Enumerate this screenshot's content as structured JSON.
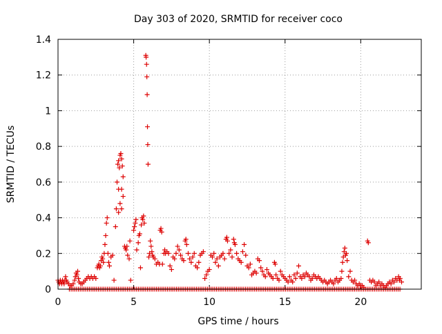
{
  "chart_data": {
    "type": "scatter",
    "title": "Day 303 of 2020, SRMTID for receiver coco",
    "xlabel": "GPS time / hours",
    "ylabel": "SRMTID / TECUs",
    "xlim": [
      0,
      24
    ],
    "ylim": [
      0,
      1.4
    ],
    "xticks": [
      0,
      5,
      10,
      15,
      20
    ],
    "xtick_labels": [
      "0",
      "5",
      "10",
      "15",
      "20"
    ],
    "yticks": [
      0,
      0.2,
      0.4,
      0.6,
      0.8,
      1,
      1.2,
      1.4
    ],
    "ytick_labels": [
      "0",
      "0.2",
      "0.4",
      "0.6",
      "0.8",
      "1",
      "1.2",
      "1.4"
    ],
    "grid": true,
    "marker": "plus",
    "color": "#dd0000",
    "series": [
      {
        "name": "SRMTID",
        "points": [
          [
            0.0,
            0.05
          ],
          [
            0.05,
            0.04
          ],
          [
            0.1,
            0.03
          ],
          [
            0.15,
            0.05
          ],
          [
            0.2,
            0.04
          ],
          [
            0.25,
            0.03
          ],
          [
            0.3,
            0.05
          ],
          [
            0.35,
            0.04
          ],
          [
            0.4,
            0.03
          ],
          [
            0.45,
            0.05
          ],
          [
            0.5,
            0.07
          ],
          [
            0.55,
            0.05
          ],
          [
            0.6,
            0.04
          ],
          [
            0.7,
            0.03
          ],
          [
            0.8,
            0.02
          ],
          [
            0.9,
            0.02
          ],
          [
            1.0,
            0.03
          ],
          [
            1.1,
            0.05
          ],
          [
            1.15,
            0.07
          ],
          [
            1.2,
            0.09
          ],
          [
            1.25,
            0.08
          ],
          [
            1.3,
            0.1
          ],
          [
            1.35,
            0.06
          ],
          [
            1.4,
            0.04
          ],
          [
            1.5,
            0.03
          ],
          [
            1.6,
            0.03
          ],
          [
            1.7,
            0.04
          ],
          [
            1.8,
            0.05
          ],
          [
            1.9,
            0.06
          ],
          [
            2.0,
            0.07
          ],
          [
            2.1,
            0.06
          ],
          [
            2.2,
            0.07
          ],
          [
            2.3,
            0.06
          ],
          [
            2.4,
            0.07
          ],
          [
            2.5,
            0.06
          ],
          [
            2.6,
            0.12
          ],
          [
            2.65,
            0.13
          ],
          [
            2.7,
            0.14
          ],
          [
            2.75,
            0.12
          ],
          [
            2.8,
            0.13
          ],
          [
            2.85,
            0.16
          ],
          [
            2.9,
            0.18
          ],
          [
            2.95,
            0.17
          ],
          [
            3.0,
            0.15
          ],
          [
            3.05,
            0.2
          ],
          [
            3.1,
            0.25
          ],
          [
            3.15,
            0.3
          ],
          [
            3.2,
            0.37
          ],
          [
            3.25,
            0.4
          ],
          [
            3.3,
            0.2
          ],
          [
            3.35,
            0.15
          ],
          [
            3.4,
            0.13
          ],
          [
            3.5,
            0.18
          ],
          [
            3.6,
            0.19
          ],
          [
            3.7,
            0.05
          ],
          [
            3.8,
            0.35
          ],
          [
            3.85,
            0.45
          ],
          [
            3.9,
            0.6
          ],
          [
            3.95,
            0.7
          ],
          [
            4.0,
            0.72
          ],
          [
            4.05,
            0.68
          ],
          [
            4.1,
            0.75
          ],
          [
            4.15,
            0.76
          ],
          [
            4.2,
            0.73
          ],
          [
            4.25,
            0.69
          ],
          [
            4.3,
            0.63
          ],
          [
            4.0,
            0.56
          ],
          [
            4.2,
            0.56
          ],
          [
            4.1,
            0.48
          ],
          [
            4.2,
            0.45
          ],
          [
            4.3,
            0.52
          ],
          [
            4.0,
            0.43
          ],
          [
            4.4,
            0.24
          ],
          [
            4.45,
            0.23
          ],
          [
            4.5,
            0.22
          ],
          [
            4.55,
            0.24
          ],
          [
            4.6,
            0.19
          ],
          [
            4.7,
            0.17
          ],
          [
            4.75,
            0.27
          ],
          [
            4.8,
            0.05
          ],
          [
            5.0,
            0.33
          ],
          [
            5.05,
            0.35
          ],
          [
            5.1,
            0.37
          ],
          [
            5.15,
            0.39
          ],
          [
            5.2,
            0.22
          ],
          [
            5.3,
            0.26
          ],
          [
            5.35,
            0.3
          ],
          [
            5.4,
            0.31
          ],
          [
            5.45,
            0.12
          ],
          [
            5.5,
            0.36
          ],
          [
            5.55,
            0.4
          ],
          [
            5.6,
            0.39
          ],
          [
            5.65,
            0.41
          ],
          [
            5.7,
            0.37
          ],
          [
            5.8,
            1.31
          ],
          [
            5.82,
            1.3
          ],
          [
            5.85,
            1.26
          ],
          [
            5.87,
            1.19
          ],
          [
            5.89,
            1.09
          ],
          [
            5.91,
            0.91
          ],
          [
            5.93,
            0.81
          ],
          [
            5.95,
            0.7
          ],
          [
            6.0,
            0.18
          ],
          [
            6.05,
            0.2
          ],
          [
            6.1,
            0.27
          ],
          [
            6.15,
            0.24
          ],
          [
            6.2,
            0.21
          ],
          [
            6.25,
            0.19
          ],
          [
            6.3,
            0.18
          ],
          [
            6.4,
            0.17
          ],
          [
            6.5,
            0.14
          ],
          [
            6.6,
            0.15
          ],
          [
            6.7,
            0.14
          ],
          [
            6.75,
            0.33
          ],
          [
            6.8,
            0.34
          ],
          [
            6.85,
            0.32
          ],
          [
            6.9,
            0.14
          ],
          [
            7.0,
            0.2
          ],
          [
            7.05,
            0.22
          ],
          [
            7.1,
            0.2
          ],
          [
            7.2,
            0.21
          ],
          [
            7.3,
            0.2
          ],
          [
            7.4,
            0.13
          ],
          [
            7.5,
            0.11
          ],
          [
            7.6,
            0.18
          ],
          [
            7.7,
            0.17
          ],
          [
            7.8,
            0.2
          ],
          [
            7.9,
            0.24
          ],
          [
            8.0,
            0.22
          ],
          [
            8.1,
            0.19
          ],
          [
            8.2,
            0.17
          ],
          [
            8.3,
            0.16
          ],
          [
            8.4,
            0.27
          ],
          [
            8.45,
            0.28
          ],
          [
            8.5,
            0.25
          ],
          [
            8.6,
            0.2
          ],
          [
            8.7,
            0.17
          ],
          [
            8.8,
            0.15
          ],
          [
            8.9,
            0.18
          ],
          [
            9.0,
            0.2
          ],
          [
            9.1,
            0.13
          ],
          [
            9.2,
            0.12
          ],
          [
            9.3,
            0.15
          ],
          [
            9.4,
            0.19
          ],
          [
            9.5,
            0.2
          ],
          [
            9.6,
            0.21
          ],
          [
            9.7,
            0.06
          ],
          [
            9.8,
            0.08
          ],
          [
            9.9,
            0.1
          ],
          [
            10.0,
            0.11
          ],
          [
            10.1,
            0.19
          ],
          [
            10.2,
            0.18
          ],
          [
            10.3,
            0.2
          ],
          [
            10.4,
            0.15
          ],
          [
            10.5,
            0.17
          ],
          [
            10.6,
            0.13
          ],
          [
            10.7,
            0.18
          ],
          [
            10.8,
            0.19
          ],
          [
            10.9,
            0.2
          ],
          [
            11.0,
            0.17
          ],
          [
            11.1,
            0.28
          ],
          [
            11.15,
            0.29
          ],
          [
            11.2,
            0.27
          ],
          [
            11.3,
            0.2
          ],
          [
            11.4,
            0.22
          ],
          [
            11.5,
            0.18
          ],
          [
            11.6,
            0.28
          ],
          [
            11.65,
            0.26
          ],
          [
            11.7,
            0.25
          ],
          [
            11.8,
            0.2
          ],
          [
            11.9,
            0.17
          ],
          [
            12.0,
            0.16
          ],
          [
            12.1,
            0.15
          ],
          [
            12.2,
            0.21
          ],
          [
            12.3,
            0.25
          ],
          [
            12.4,
            0.19
          ],
          [
            12.5,
            0.13
          ],
          [
            12.6,
            0.12
          ],
          [
            12.7,
            0.14
          ],
          [
            12.8,
            0.08
          ],
          [
            12.9,
            0.09
          ],
          [
            13.0,
            0.1
          ],
          [
            13.1,
            0.09
          ],
          [
            13.2,
            0.17
          ],
          [
            13.3,
            0.16
          ],
          [
            13.4,
            0.12
          ],
          [
            13.5,
            0.1
          ],
          [
            13.6,
            0.08
          ],
          [
            13.7,
            0.07
          ],
          [
            13.8,
            0.11
          ],
          [
            13.9,
            0.09
          ],
          [
            14.0,
            0.08
          ],
          [
            14.1,
            0.07
          ],
          [
            14.2,
            0.06
          ],
          [
            14.3,
            0.15
          ],
          [
            14.35,
            0.14
          ],
          [
            14.4,
            0.08
          ],
          [
            14.5,
            0.06
          ],
          [
            14.6,
            0.05
          ],
          [
            14.7,
            0.1
          ],
          [
            14.8,
            0.08
          ],
          [
            14.9,
            0.07
          ],
          [
            15.0,
            0.06
          ],
          [
            15.1,
            0.05
          ],
          [
            15.2,
            0.04
          ],
          [
            15.3,
            0.07
          ],
          [
            15.4,
            0.05
          ],
          [
            15.5,
            0.04
          ],
          [
            15.6,
            0.08
          ],
          [
            15.7,
            0.06
          ],
          [
            15.8,
            0.09
          ],
          [
            15.9,
            0.13
          ],
          [
            16.0,
            0.07
          ],
          [
            16.1,
            0.06
          ],
          [
            16.2,
            0.08
          ],
          [
            16.3,
            0.07
          ],
          [
            16.4,
            0.09
          ],
          [
            16.5,
            0.08
          ],
          [
            16.6,
            0.07
          ],
          [
            16.7,
            0.05
          ],
          [
            16.8,
            0.06
          ],
          [
            16.9,
            0.08
          ],
          [
            17.0,
            0.07
          ],
          [
            17.1,
            0.06
          ],
          [
            17.2,
            0.07
          ],
          [
            17.3,
            0.06
          ],
          [
            17.4,
            0.05
          ],
          [
            17.5,
            0.04
          ],
          [
            17.6,
            0.05
          ],
          [
            17.7,
            0.04
          ],
          [
            17.8,
            0.03
          ],
          [
            17.9,
            0.04
          ],
          [
            18.0,
            0.05
          ],
          [
            18.1,
            0.04
          ],
          [
            18.2,
            0.03
          ],
          [
            18.3,
            0.05
          ],
          [
            18.4,
            0.06
          ],
          [
            18.5,
            0.04
          ],
          [
            18.6,
            0.05
          ],
          [
            18.7,
            0.06
          ],
          [
            18.75,
            0.1
          ],
          [
            18.8,
            0.15
          ],
          [
            18.85,
            0.18
          ],
          [
            18.9,
            0.21
          ],
          [
            18.95,
            0.23
          ],
          [
            19.0,
            0.19
          ],
          [
            19.05,
            0.2
          ],
          [
            19.1,
            0.16
          ],
          [
            19.2,
            0.07
          ],
          [
            19.3,
            0.1
          ],
          [
            19.4,
            0.05
          ],
          [
            19.5,
            0.04
          ],
          [
            19.6,
            0.05
          ],
          [
            19.7,
            0.03
          ],
          [
            19.8,
            0.02
          ],
          [
            19.9,
            0.03
          ],
          [
            20.0,
            0.02
          ],
          [
            20.1,
            0.02
          ],
          [
            20.2,
            0.01
          ],
          [
            20.45,
            0.27
          ],
          [
            20.5,
            0.26
          ],
          [
            20.6,
            0.05
          ],
          [
            20.7,
            0.04
          ],
          [
            20.8,
            0.05
          ],
          [
            20.9,
            0.04
          ],
          [
            21.0,
            0.02
          ],
          [
            21.1,
            0.03
          ],
          [
            21.2,
            0.04
          ],
          [
            21.3,
            0.02
          ],
          [
            21.4,
            0.03
          ],
          [
            21.5,
            0.02
          ],
          [
            21.6,
            0.01
          ],
          [
            21.7,
            0.02
          ],
          [
            21.8,
            0.03
          ],
          [
            21.9,
            0.04
          ],
          [
            22.0,
            0.03
          ],
          [
            22.1,
            0.05
          ],
          [
            22.2,
            0.04
          ],
          [
            22.3,
            0.06
          ],
          [
            22.4,
            0.05
          ],
          [
            22.5,
            0.07
          ],
          [
            22.55,
            0.05
          ],
          [
            22.6,
            0.06
          ],
          [
            22.7,
            0.04
          ]
        ]
      }
    ]
  }
}
